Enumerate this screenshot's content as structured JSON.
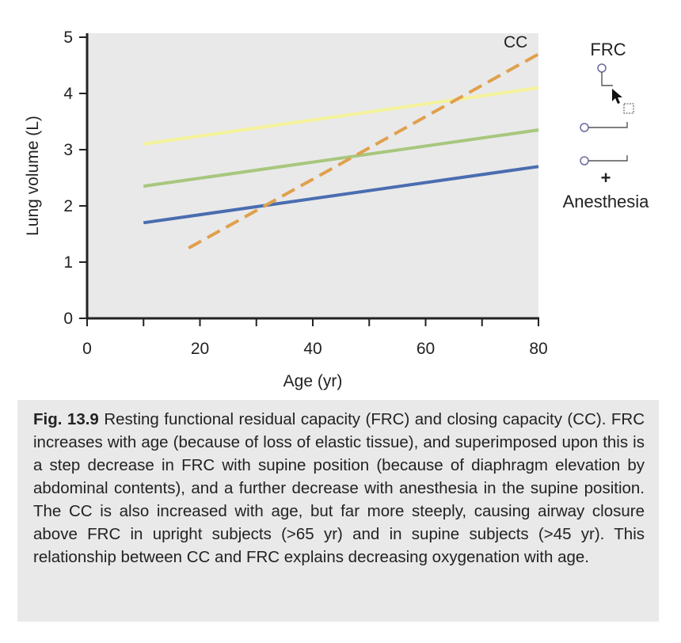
{
  "chart_data": {
    "type": "line",
    "title": "",
    "xlabel": "Age (yr)",
    "ylabel": "Lung volume (L)",
    "xlim": [
      0,
      80
    ],
    "ylim": [
      0,
      5
    ],
    "x_ticks": [
      "0",
      "20",
      "40",
      "60",
      "80"
    ],
    "y_ticks": [
      "0",
      "1",
      "2",
      "3",
      "4",
      "5"
    ],
    "series": [
      {
        "name": "FRC (upright)",
        "color": "#f3f29a",
        "style": "solid",
        "x": [
          10,
          80
        ],
        "y": [
          3.1,
          4.1
        ]
      },
      {
        "name": "FRC (supine)",
        "color": "#a8c77d",
        "style": "solid",
        "x": [
          10,
          80
        ],
        "y": [
          2.35,
          3.35
        ]
      },
      {
        "name": "FRC (supine + anesthesia)",
        "color": "#4a6db0",
        "style": "solid",
        "x": [
          10,
          80
        ],
        "y": [
          1.7,
          2.7
        ]
      },
      {
        "name": "CC",
        "color": "#e0a04c",
        "style": "dashed",
        "x": [
          18,
          80
        ],
        "y": [
          1.25,
          4.7
        ]
      }
    ],
    "annotations": [
      {
        "text": "CC",
        "target": "CC"
      }
    ],
    "legend": {
      "title": "FRC",
      "footer_plus": "+",
      "footer_label": "Anesthesia"
    }
  },
  "caption": {
    "label": "Fig. 13.9",
    "text": "Resting functional residual capacity (FRC) and closing capacity (CC). FRC increases with age (because of loss of elastic tissue), and superimposed upon this is a step decrease in FRC with supine position (because of diaphragm elevation by abdominal contents), and a further decrease with anesthesia in the supine position. The CC is also increased with age, but far more steeply, causing airway closure above FRC in upright subjects (>65 yr) and in supine subjects (>45 yr). This relationship between CC and FRC explains decreasing oxygenation with age."
  }
}
